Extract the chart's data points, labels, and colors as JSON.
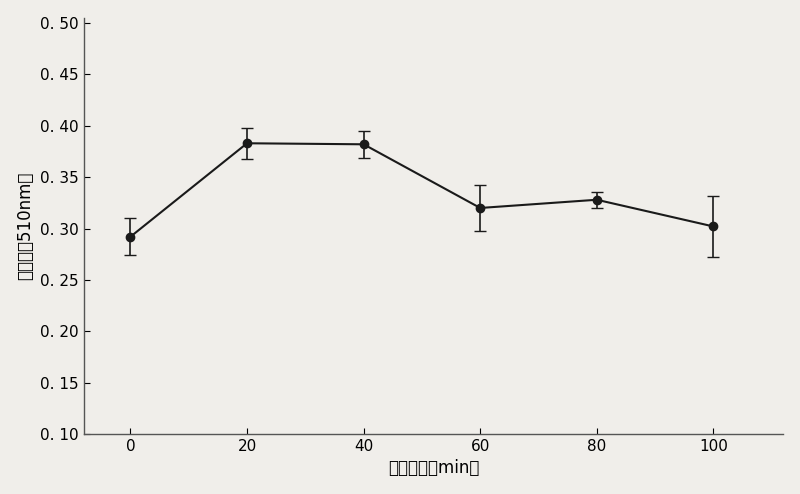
{
  "x": [
    0,
    20,
    40,
    60,
    80,
    100
  ],
  "y": [
    0.292,
    0.383,
    0.382,
    0.32,
    0.328,
    0.302
  ],
  "yerr": [
    0.018,
    0.015,
    0.013,
    0.022,
    0.008,
    0.03
  ],
  "xlabel": "超声时间（min）",
  "ylabel": "吸光値（510nm）",
  "ylim": [
    0.1,
    0.505
  ],
  "xlim": [
    -8,
    112
  ],
  "yticks": [
    0.1,
    0.15,
    0.2,
    0.25,
    0.3,
    0.35,
    0.4,
    0.45,
    0.5
  ],
  "ytick_labels": [
    "0. 10",
    "0. 15",
    "0. 20",
    "0. 25",
    "0. 30",
    "0. 35",
    "0. 40",
    "0. 45",
    "0. 50"
  ],
  "xticks": [
    0,
    20,
    40,
    60,
    80,
    100
  ],
  "line_color": "#1a1a1a",
  "marker": "o",
  "marker_size": 6,
  "marker_facecolor": "#1a1a1a",
  "capsize": 4,
  "linewidth": 1.5,
  "background_color": "#f0eeea",
  "xlabel_fontsize": 12,
  "ylabel_fontsize": 12,
  "tick_fontsize": 11
}
